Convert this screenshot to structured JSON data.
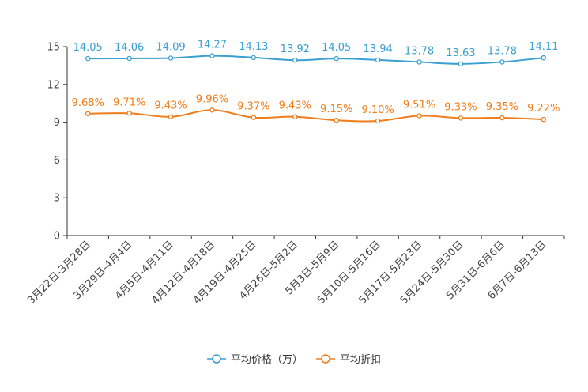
{
  "chart_data": {
    "type": "line",
    "title": "",
    "xlabel": "",
    "ylabel": "",
    "ylim": [
      0,
      15
    ],
    "yticks": [
      "0",
      "3",
      "6",
      "9",
      "12",
      "15"
    ],
    "categories": [
      "3月22日-3月28日",
      "3月29日-4月4日",
      "4月5日-4月11日",
      "4月12日-4月18日",
      "4月19日-4月25日",
      "4月26日-5月2日",
      "5月3日-5月9日",
      "5月10日-5月16日",
      "5月17日-5月23日",
      "5月24日-5月30日",
      "5月31日-6月6日",
      "6月7日-6月13日"
    ],
    "series": [
      {
        "name": "平均价格（万）",
        "color": "#3a9fd1",
        "values": [
          14.05,
          14.06,
          14.09,
          14.27,
          14.13,
          13.92,
          14.05,
          13.94,
          13.78,
          13.63,
          13.78,
          14.11
        ],
        "labels": [
          "14.05",
          "14.06",
          "14.09",
          "14.27",
          "14.13",
          "13.92",
          "14.05",
          "13.94",
          "13.78",
          "13.63",
          "13.78",
          "14.11"
        ]
      },
      {
        "name": "平均折扣",
        "color": "#f07d1a",
        "values": [
          9.68,
          9.71,
          9.43,
          9.96,
          9.37,
          9.43,
          9.15,
          9.1,
          9.51,
          9.33,
          9.35,
          9.22
        ],
        "labels": [
          "9.68%",
          "9.71%",
          "9.43%",
          "9.96%",
          "9.37%",
          "9.43%",
          "9.15%",
          "9.10%",
          "9.51%",
          "9.33%",
          "9.35%",
          "9.22%"
        ]
      }
    ],
    "legend": [
      "平均价格（万）",
      "平均折扣"
    ],
    "legend_position": "bottom"
  }
}
